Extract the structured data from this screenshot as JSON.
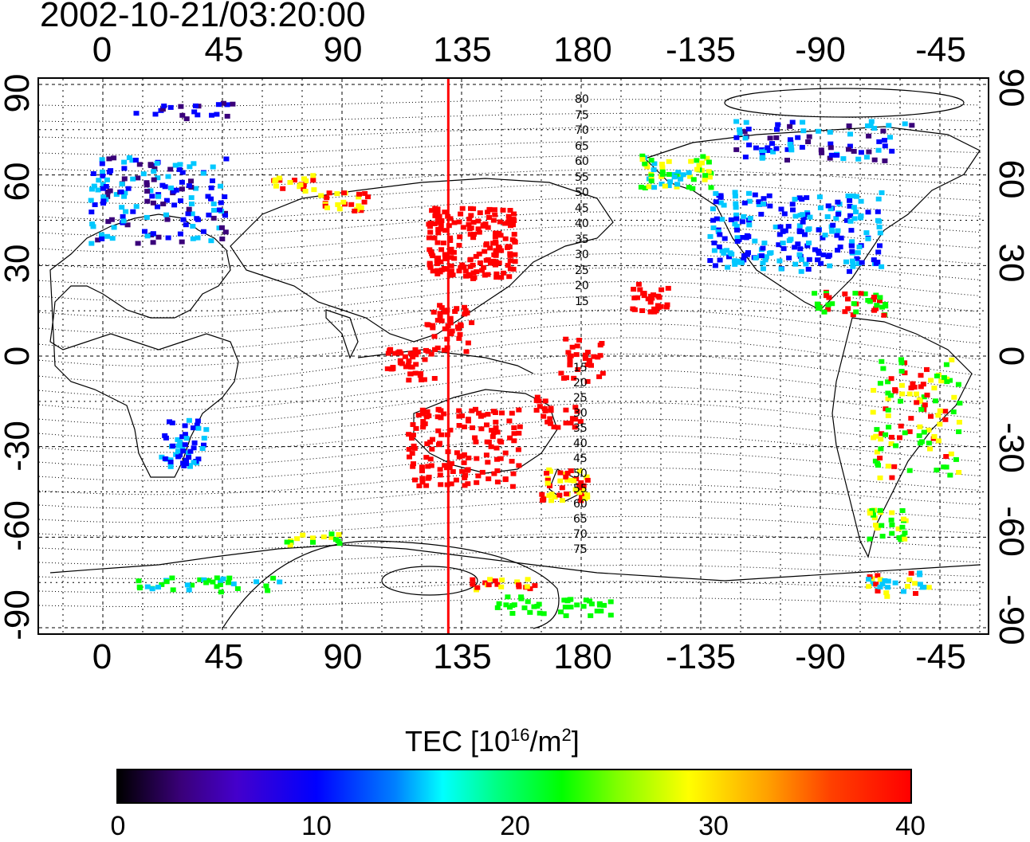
{
  "title": "2002-10-21/03:20:00",
  "top_axis_ticks": [
    "0",
    "45",
    "90",
    "135",
    "180",
    "-135",
    "-90",
    "-45"
  ],
  "bottom_axis_ticks": [
    "0",
    "45",
    "90",
    "135",
    "180",
    "-135",
    "-90",
    "-45"
  ],
  "left_axis_ticks": [
    "90",
    "60",
    "30",
    "0",
    "-30",
    "-60",
    "-90"
  ],
  "right_axis_ticks": [
    "90",
    "60",
    "30",
    "0",
    "-30",
    "-60",
    "-90"
  ],
  "magnetic_lat_labels_north": [
    "80",
    "75",
    "70",
    "65",
    "60",
    "55",
    "50",
    "45",
    "40",
    "35",
    "30",
    "25",
    "20",
    "15"
  ],
  "magnetic_lat_labels_south": [
    "15",
    "20",
    "25",
    "30",
    "35",
    "40",
    "45",
    "50",
    "55",
    "60",
    "65",
    "70",
    "75"
  ],
  "colorbar": {
    "label_prefix": "TEC  [10",
    "label_sup1": "16",
    "label_mid": "/m",
    "label_sup2": "2",
    "label_suffix": "]",
    "ticks": [
      "0",
      "10",
      "20",
      "30",
      "40"
    ],
    "min": 0,
    "max": 40
  },
  "map": {
    "subsolar_meridian_lon": 130,
    "meridian_color": "#ff0000",
    "colors": {
      "very_low": "#3a007a",
      "low": "#0000ff",
      "mid_low": "#00c8ff",
      "mid": "#00ff00",
      "mid_high": "#ffff00",
      "high": "#ff0000"
    }
  }
}
